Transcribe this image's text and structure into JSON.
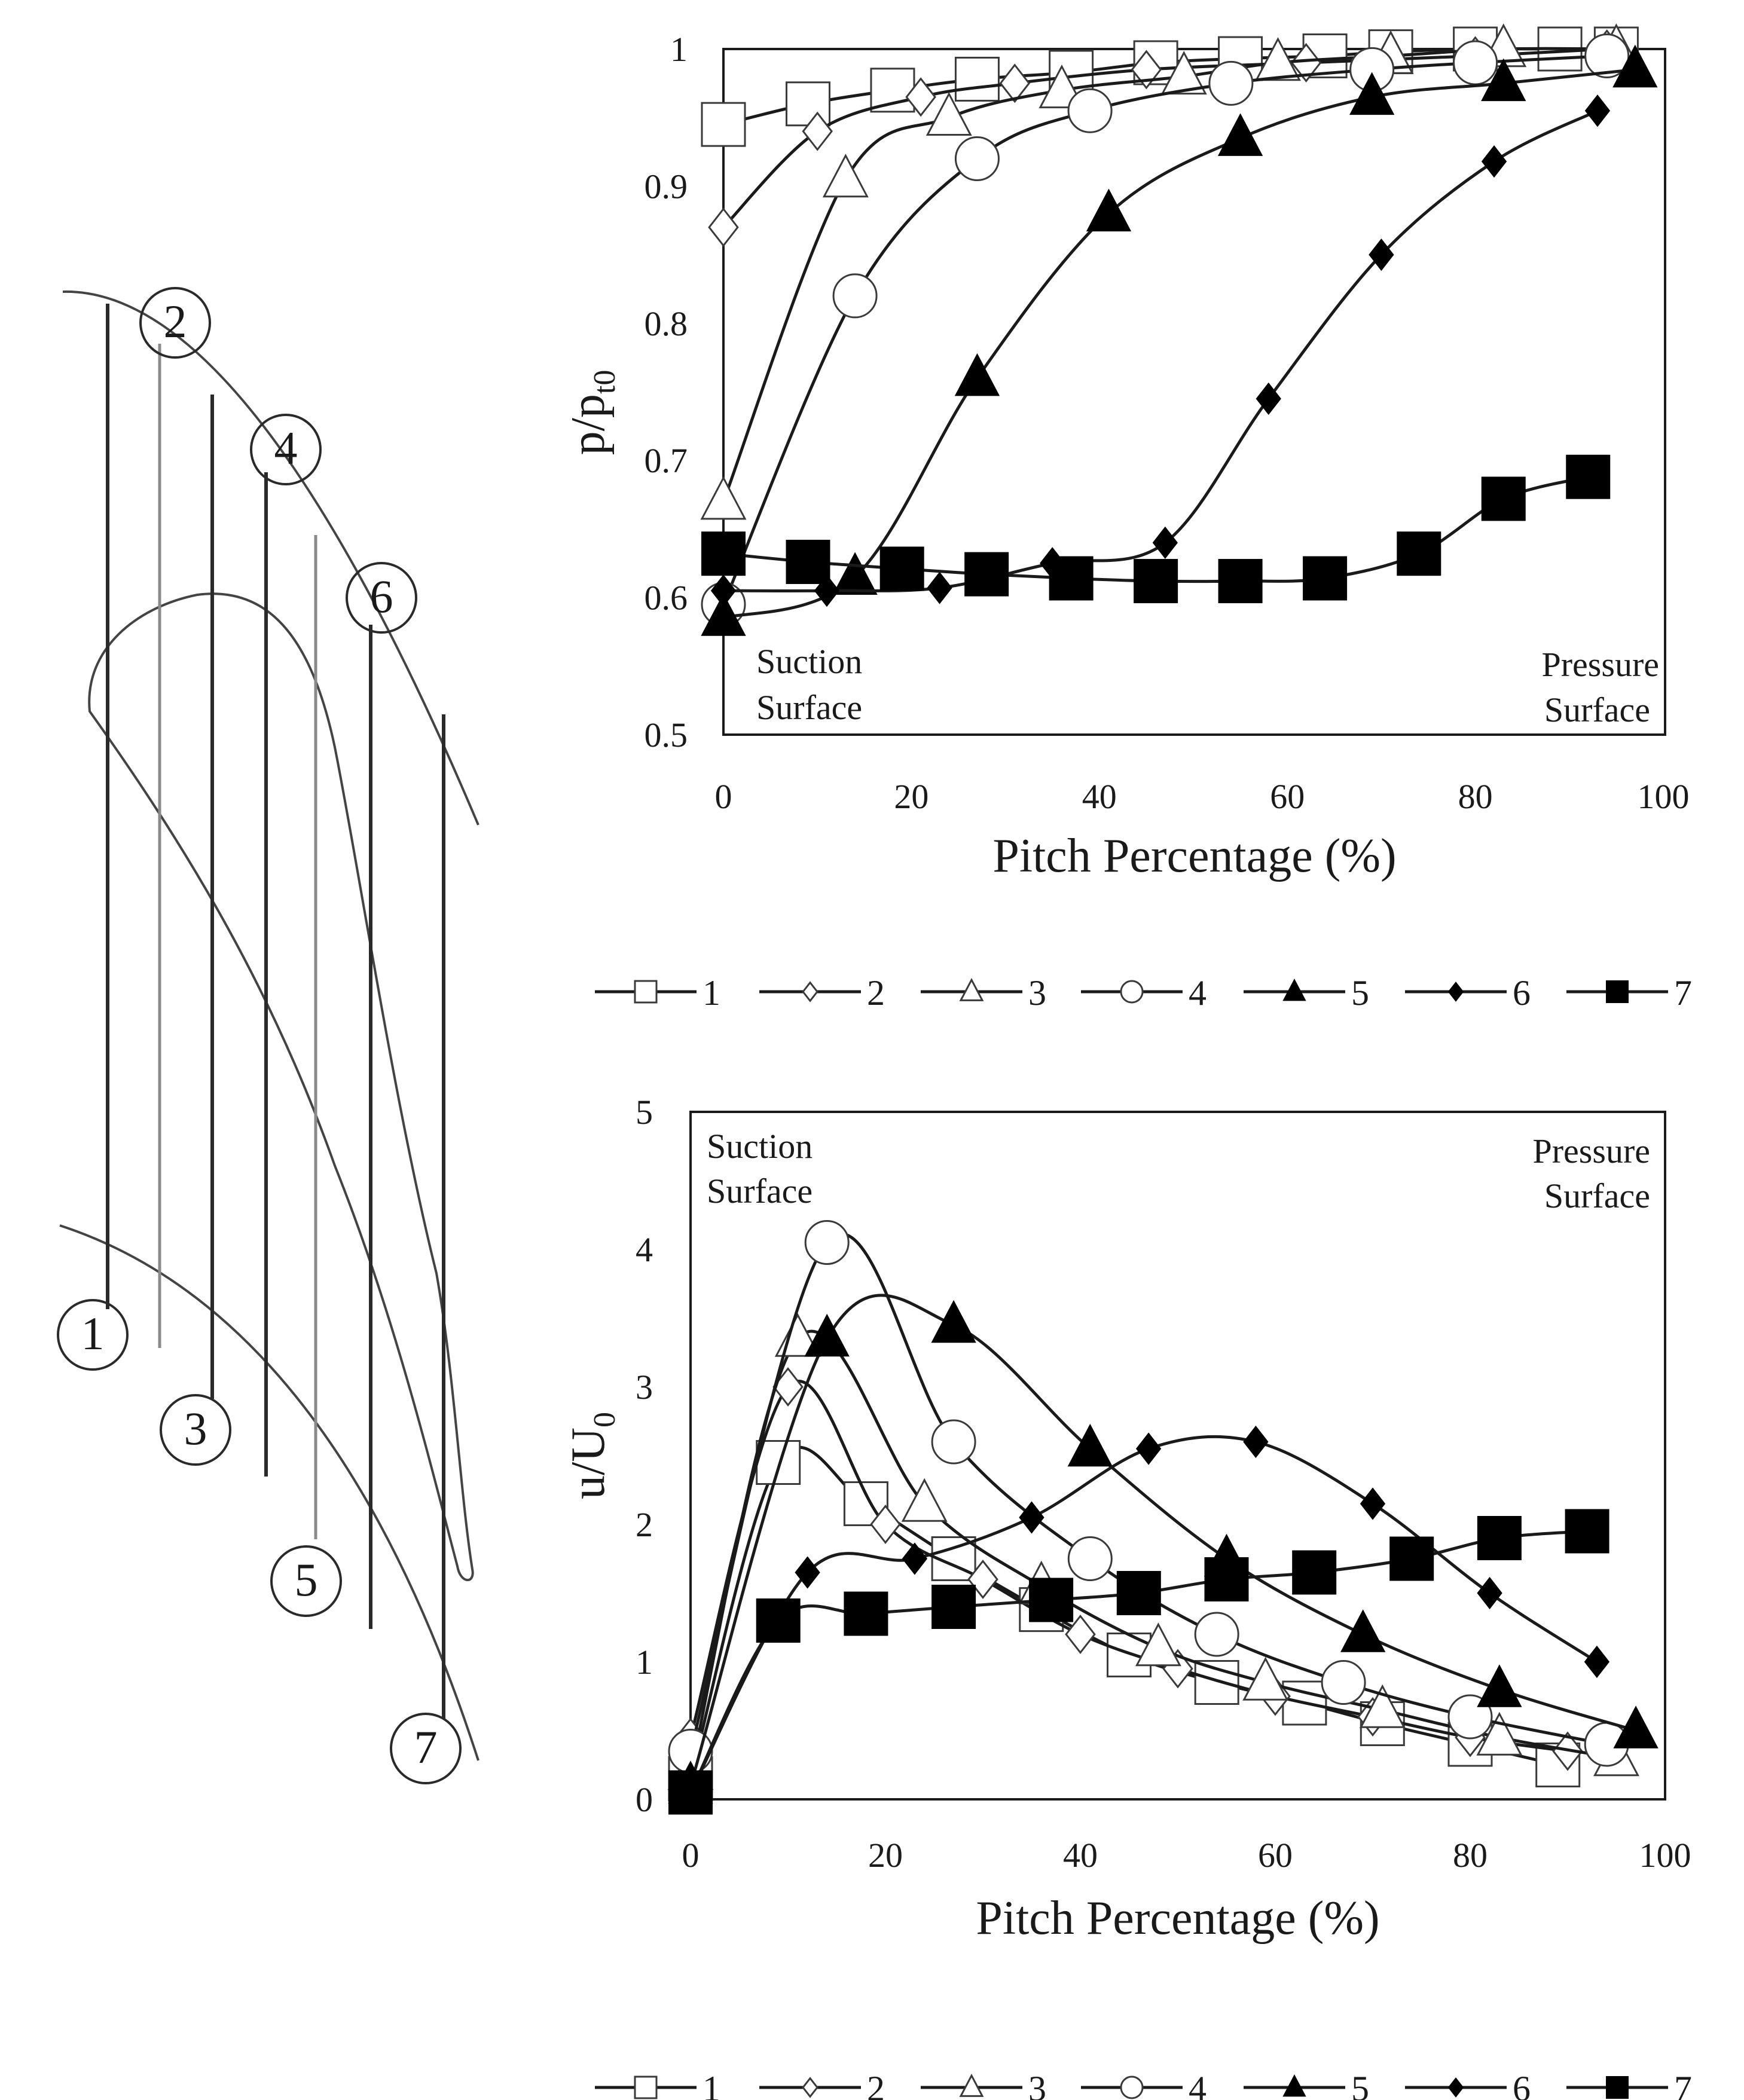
{
  "figure": {
    "stations": [
      "1",
      "2",
      "3",
      "4",
      "5",
      "6",
      "7"
    ]
  },
  "chart_data": [
    {
      "type": "line",
      "id": "pressure",
      "xlabel": "Pitch Percentage (%)",
      "ylabel": "p/p",
      "ylabel_sub": "t0",
      "xlim": [
        0,
        100
      ],
      "ylim": [
        0.5,
        1
      ],
      "xticks": [
        0,
        20,
        40,
        60,
        80,
        100
      ],
      "yticks": [
        0.5,
        0.6,
        0.7,
        0.8,
        0.9,
        1
      ],
      "ytick_labels": [
        "0.5",
        "0.6",
        "0.7",
        "0.8",
        "0.9",
        "1"
      ],
      "grid": false,
      "legend_position": "bottom",
      "annotations": {
        "left": [
          "Suction",
          "Surface"
        ],
        "right": [
          "Pressure",
          "Surface"
        ]
      },
      "series": [
        {
          "name": "1",
          "marker": "square-open",
          "x": [
            0,
            9,
            18,
            27,
            37,
            46,
            55,
            64,
            71,
            80,
            89,
            95
          ],
          "y": [
            0.945,
            0.96,
            0.97,
            0.978,
            0.983,
            0.99,
            0.993,
            0.995,
            0.998,
            1.0,
            1.0,
            1.0
          ]
        },
        {
          "name": "2",
          "marker": "diamond-open",
          "x": [
            0,
            10,
            21,
            31,
            45,
            62,
            80,
            94
          ],
          "y": [
            0.87,
            0.94,
            0.965,
            0.975,
            0.985,
            0.99,
            0.995,
            1.0
          ]
        },
        {
          "name": "3",
          "marker": "triangle-open",
          "x": [
            0,
            13,
            24,
            36,
            49,
            59,
            71,
            83,
            95
          ],
          "y": [
            0.67,
            0.905,
            0.95,
            0.97,
            0.98,
            0.99,
            0.995,
            1.0,
            1.0
          ]
        },
        {
          "name": "4",
          "marker": "circle-open",
          "x": [
            0,
            14,
            27,
            39,
            54,
            69,
            80,
            94
          ],
          "y": [
            0.595,
            0.82,
            0.92,
            0.955,
            0.975,
            0.985,
            0.99,
            0.995
          ]
        },
        {
          "name": "5",
          "marker": "triangle-filled",
          "x": [
            0,
            14,
            27,
            41,
            55,
            69,
            83,
            97
          ],
          "y": [
            0.585,
            0.615,
            0.76,
            0.88,
            0.935,
            0.965,
            0.975,
            0.985
          ]
        },
        {
          "name": "6",
          "marker": "diamond-filled",
          "x": [
            0,
            11,
            23,
            35,
            47,
            58,
            70,
            82,
            93
          ],
          "y": [
            0.605,
            0.605,
            0.607,
            0.625,
            0.64,
            0.745,
            0.85,
            0.918,
            0.955
          ]
        },
        {
          "name": "7",
          "marker": "square-filled",
          "x": [
            0,
            9,
            19,
            28,
            37,
            46,
            55,
            64,
            74,
            83,
            92
          ],
          "y": [
            0.632,
            0.626,
            0.621,
            0.617,
            0.614,
            0.612,
            0.612,
            0.614,
            0.632,
            0.672,
            0.688
          ]
        }
      ]
    },
    {
      "type": "line",
      "id": "velocity",
      "xlabel": "Pitch Percentage (%)",
      "ylabel": "u/U",
      "ylabel_sub": "0",
      "xlim": [
        0,
        100
      ],
      "ylim": [
        0,
        5
      ],
      "xticks": [
        0,
        20,
        40,
        60,
        80,
        100
      ],
      "yticks": [
        0,
        1,
        2,
        3,
        4,
        5
      ],
      "ytick_labels": [
        "0",
        "1",
        "2",
        "3",
        "4",
        "5"
      ],
      "grid": false,
      "legend_position": "bottom",
      "annotations": {
        "left": [
          "Suction",
          "Surface"
        ],
        "right": [
          "Pressure",
          "Surface"
        ]
      },
      "series": [
        {
          "name": "1",
          "marker": "square-open",
          "x": [
            0,
            9,
            18,
            27,
            36,
            45,
            54,
            63,
            71,
            80,
            89
          ],
          "y": [
            0.15,
            2.45,
            2.15,
            1.75,
            1.38,
            1.05,
            0.85,
            0.7,
            0.55,
            0.4,
            0.25
          ]
        },
        {
          "name": "2",
          "marker": "diamond-open",
          "x": [
            0,
            10,
            20,
            30,
            40,
            50,
            60,
            70,
            80,
            90
          ],
          "y": [
            0.45,
            3.0,
            2.0,
            1.6,
            1.2,
            0.95,
            0.75,
            0.6,
            0.45,
            0.35
          ]
        },
        {
          "name": "3",
          "marker": "triangle-open",
          "x": [
            0,
            11,
            24,
            36,
            48,
            59,
            71,
            83,
            95
          ],
          "y": [
            0.2,
            3.35,
            2.15,
            1.55,
            1.1,
            0.85,
            0.65,
            0.45,
            0.3
          ]
        },
        {
          "name": "4",
          "marker": "circle-open",
          "x": [
            0,
            14,
            27,
            41,
            54,
            67,
            80,
            94
          ],
          "y": [
            0.35,
            4.05,
            2.6,
            1.75,
            1.2,
            0.85,
            0.6,
            0.4
          ]
        },
        {
          "name": "5",
          "marker": "triangle-filled",
          "x": [
            0,
            14,
            27,
            41,
            55,
            69,
            83,
            97
          ],
          "y": [
            0.1,
            3.35,
            3.45,
            2.55,
            1.75,
            1.2,
            0.8,
            0.5
          ]
        },
        {
          "name": "6",
          "marker": "diamond-filled",
          "x": [
            0,
            12,
            23,
            35,
            47,
            58,
            70,
            82,
            93
          ],
          "y": [
            0.05,
            1.65,
            1.75,
            2.05,
            2.55,
            2.6,
            2.15,
            1.5,
            1.0
          ]
        },
        {
          "name": "7",
          "marker": "square-filled",
          "x": [
            0,
            9,
            18,
            27,
            37,
            46,
            55,
            64,
            74,
            83,
            92
          ],
          "y": [
            0.05,
            1.3,
            1.35,
            1.4,
            1.45,
            1.5,
            1.6,
            1.65,
            1.75,
            1.9,
            1.95
          ]
        }
      ]
    }
  ]
}
